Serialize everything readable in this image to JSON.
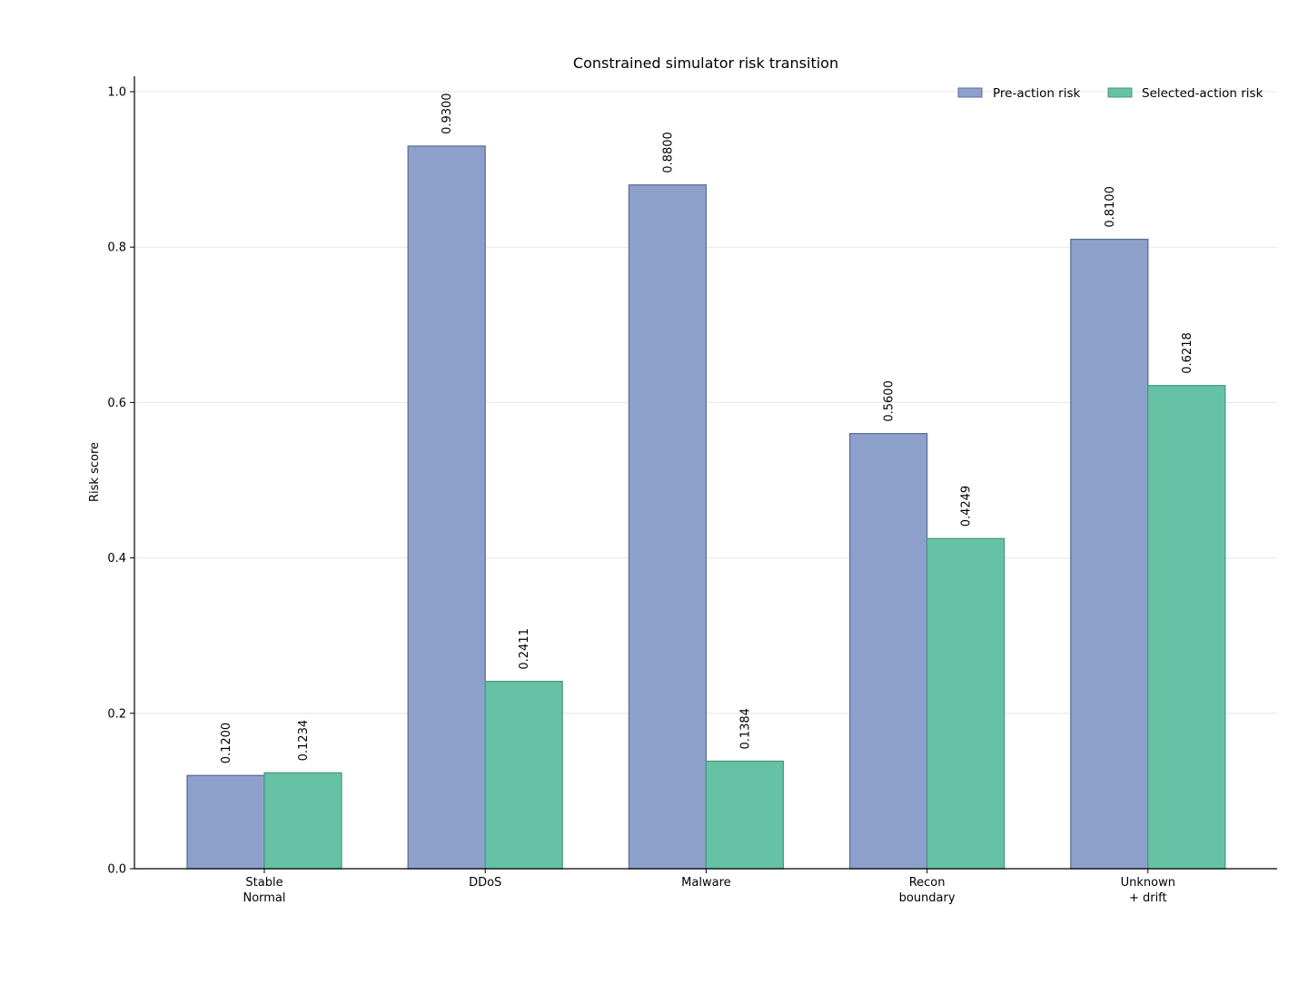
{
  "chart_data": {
    "type": "bar",
    "title": "Constrained simulator risk transition",
    "xlabel": "",
    "ylabel": "Risk score",
    "ylim": [
      0,
      1.0
    ],
    "yticks": [
      "0.0",
      "0.2",
      "0.4",
      "0.6",
      "0.8",
      "1.0"
    ],
    "ytick_values": [
      0,
      0.2,
      0.4,
      0.6,
      0.8,
      1.0
    ],
    "grid": "horizontal",
    "legend_position": "top-right",
    "categories": [
      [
        "Stable",
        "Normal"
      ],
      [
        "DDoS"
      ],
      [
        "Malware"
      ],
      [
        "Recon",
        "boundary"
      ],
      [
        "Unknown",
        "+ drift"
      ]
    ],
    "series": [
      {
        "name": "Pre-action risk",
        "color": "#8da0cb",
        "edge_color": "#5f6f99",
        "values": [
          0.12,
          0.93,
          0.88,
          0.56,
          0.81
        ],
        "labels": [
          "0.1200",
          "0.9300",
          "0.8800",
          "0.5600",
          "0.8100"
        ]
      },
      {
        "name": "Selected-action risk",
        "color": "#66c2a5",
        "edge_color": "#4a9a80",
        "values": [
          0.1234,
          0.2411,
          0.1384,
          0.4249,
          0.6218
        ],
        "labels": [
          "0.1234",
          "0.2411",
          "0.1384",
          "0.4249",
          "0.6218"
        ]
      }
    ]
  }
}
